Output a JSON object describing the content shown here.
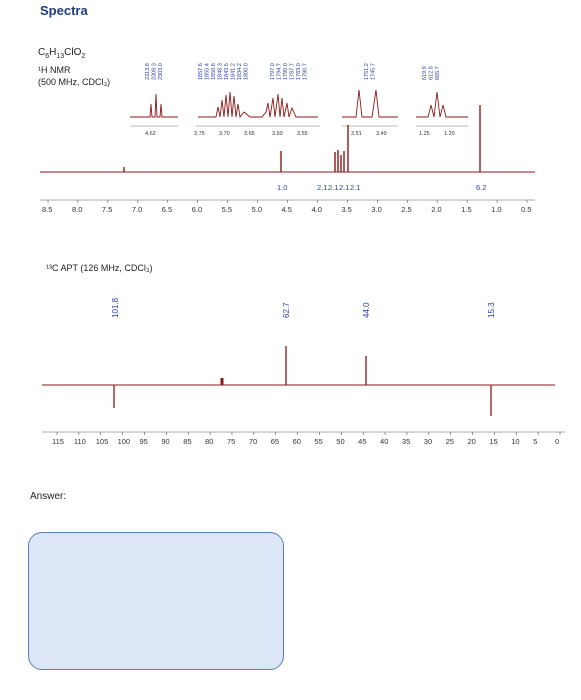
{
  "title": "Spectra",
  "hnmr": {
    "formula_main": "C",
    "formula_parts": [
      [
        "C",
        ""
      ],
      [
        "6",
        "sub"
      ],
      [
        "H",
        ""
      ],
      [
        "13",
        "sub"
      ],
      [
        "ClO",
        ""
      ],
      [
        "2",
        "sub"
      ]
    ],
    "label_line1": "¹H NMR",
    "label_line2": "(500 MHz, CDCl₃)",
    "inset_freq_groups": [
      [
        "2313.8",
        "2308.3",
        "2303.0"
      ],
      [
        "1857.6",
        "1855.4",
        "1850.6",
        "1848.3",
        "1843.5",
        "1841.2",
        "1834.2",
        "1800.0"
      ],
      [
        "1797.0",
        "1794.7",
        "1790.0",
        "1787.7",
        "1783.0",
        "1780.7"
      ],
      [
        "1751.2",
        "1745.7"
      ],
      [
        "619.9",
        "612.8",
        "605.7"
      ]
    ],
    "inset_axis_labels": [
      "4.62",
      "3.75",
      "3.70",
      "3.65",
      "3.60",
      "3.55",
      "3.51",
      "3.49",
      "1.25",
      "1.20"
    ],
    "integrals": [
      "1.0",
      "2.1",
      "2.1",
      "2.1",
      "2.1",
      "6.2"
    ],
    "axis_ticks": [
      "8.5",
      "8.0",
      "7.5",
      "7.0",
      "6.5",
      "6.0",
      "5.5",
      "5.0",
      "4.5",
      "4.0",
      "3.5",
      "3.0",
      "2.5",
      "2.0",
      "1.5",
      "1.0",
      "0.5"
    ]
  },
  "c13": {
    "label": "¹³C APT (126 MHz, CDCl₃)",
    "peak_labels": [
      "101.8",
      "62.7",
      "44.0",
      "15.3"
    ],
    "axis_ticks": [
      "115",
      "110",
      "105",
      "100",
      "95",
      "90",
      "85",
      "80",
      "75",
      "70",
      "65",
      "60",
      "55",
      "50",
      "45",
      "40",
      "35",
      "30",
      "25",
      "20",
      "15",
      "10",
      "5",
      "0"
    ]
  },
  "answer": {
    "label": "Answer:"
  },
  "colors": {
    "spectrum": "#8b1a1a",
    "annotation": "#2b3fa8",
    "title": "#1f3b7a",
    "answer_fill": "#dce6f7",
    "answer_border": "#5b7fbf"
  }
}
